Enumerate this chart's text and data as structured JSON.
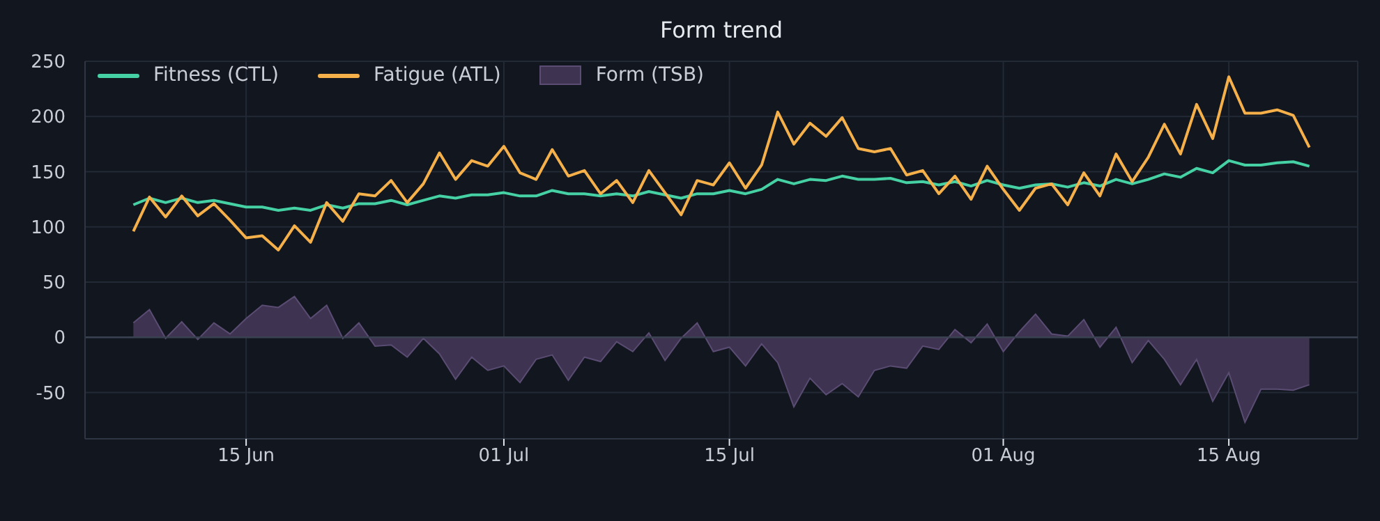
{
  "chart_data": {
    "type": "line",
    "title": "Form trend",
    "x": [
      "--06-08",
      "--06-09",
      "--06-10",
      "--06-11",
      "--06-12",
      "--06-13",
      "--06-14",
      "--06-15",
      "--06-16",
      "--06-17",
      "--06-18",
      "--06-19",
      "--06-20",
      "--06-21",
      "--06-22",
      "--06-23",
      "--06-24",
      "--06-25",
      "--06-26",
      "--06-27",
      "--06-28",
      "--06-29",
      "--06-30",
      "--07-01",
      "--07-02",
      "--07-03",
      "--07-04",
      "--07-05",
      "--07-06",
      "--07-07",
      "--07-08",
      "--07-09",
      "--07-10",
      "--07-11",
      "--07-12",
      "--07-13",
      "--07-14",
      "--07-15",
      "--07-16",
      "--07-17",
      "--07-18",
      "--07-19",
      "--07-20",
      "--07-21",
      "--07-22",
      "--07-23",
      "--07-24",
      "--07-25",
      "--07-26",
      "--07-27",
      "--07-28",
      "--07-29",
      "--07-30",
      "--07-31",
      "--08-01",
      "--08-02",
      "--08-03",
      "--08-04",
      "--08-05",
      "--08-06",
      "--08-07",
      "--08-08",
      "--08-09",
      "--08-10",
      "--08-11",
      "--08-12",
      "--08-13",
      "--08-14",
      "--08-15",
      "--08-16",
      "--08-17",
      "--08-18",
      "--08-19",
      "--08-20"
    ],
    "series": [
      {
        "name": "Fitness (CTL)",
        "color": "#45d1a3",
        "values": [
          120,
          126,
          122,
          126,
          122,
          124,
          121,
          118,
          118,
          115,
          117,
          115,
          120,
          117,
          121,
          121,
          124,
          120,
          124,
          128,
          126,
          129,
          129,
          131,
          128,
          128,
          133,
          130,
          130,
          128,
          130,
          128,
          132,
          129,
          126,
          130,
          130,
          133,
          130,
          134,
          143,
          139,
          143,
          142,
          146,
          143,
          143,
          144,
          140,
          141,
          138,
          141,
          137,
          142,
          138,
          135,
          138,
          139,
          136,
          140,
          137,
          143,
          139,
          143,
          148,
          145,
          153,
          149,
          160,
          156,
          156,
          158,
          159,
          155
        ]
      },
      {
        "name": "Fatigue (ATL)",
        "color": "#f5b04a",
        "values": [
          96,
          127,
          109,
          128,
          110,
          121,
          106,
          90,
          92,
          79,
          101,
          86,
          122,
          105,
          130,
          128,
          142,
          122,
          139,
          167,
          143,
          160,
          155,
          173,
          149,
          143,
          170,
          146,
          151,
          130,
          142,
          122,
          151,
          131,
          111,
          142,
          138,
          158,
          135,
          156,
          204,
          175,
          194,
          182,
          199,
          171,
          168,
          171,
          147,
          151,
          130,
          146,
          125,
          155,
          134,
          115,
          135,
          139,
          120,
          149,
          128,
          166,
          141,
          163,
          193,
          166,
          211,
          180,
          236,
          203,
          203,
          206,
          201,
          172
        ]
      },
      {
        "name": "Form (TSB)",
        "type": "area",
        "color": "#3e3350",
        "values": [
          13,
          25,
          -1,
          14,
          -2,
          13,
          3,
          17,
          29,
          27,
          37,
          17,
          29,
          -1,
          13,
          -8,
          -7,
          -18,
          -1,
          -15,
          -38,
          -18,
          -30,
          -26,
          -41,
          -20,
          -16,
          -39,
          -18,
          -22,
          -4,
          -13,
          4,
          -21,
          -1,
          13,
          -13,
          -9,
          -26,
          -6,
          -23,
          -63,
          -37,
          -52,
          -42,
          -54,
          -30,
          -26,
          -28,
          -8,
          -11,
          7,
          -5,
          12,
          -13,
          5,
          21,
          3,
          1,
          16,
          -9,
          9,
          -23,
          -3,
          -20,
          -43,
          -20,
          -58,
          -32,
          -77,
          -47,
          -47,
          -48,
          -43
        ]
      }
    ],
    "xlim": [
      "--06-05",
      "--08-23"
    ],
    "xticks": [
      {
        "value": "--06-15",
        "label": "15 Jun"
      },
      {
        "value": "--07-01",
        "label": "01 Jul"
      },
      {
        "value": "--07-15",
        "label": "15 Jul"
      },
      {
        "value": "--08-01",
        "label": "01 Aug"
      },
      {
        "value": "--08-15",
        "label": "15 Aug"
      }
    ],
    "ylim": [
      -92,
      250
    ],
    "yticks": [
      -50,
      0,
      50,
      100,
      150,
      200,
      250
    ],
    "ref_lines": [
      {
        "axis": "y",
        "value": 0,
        "color": "#3a4252"
      }
    ],
    "grid": true,
    "legend": "top left",
    "line_style": "solid"
  }
}
